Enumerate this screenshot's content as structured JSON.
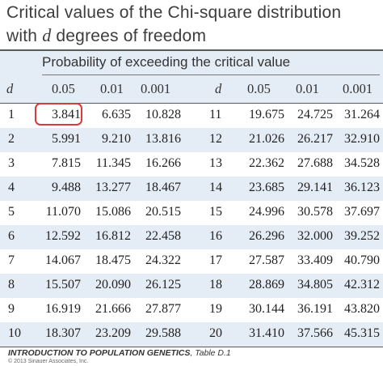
{
  "title": {
    "line1": "Critical values of the Chi-square distribution",
    "line2_prefix": "with ",
    "line2_var": "d",
    "line2_suffix": " degrees of freedom"
  },
  "header": {
    "probability_label": "Probability of exceeding the critical value",
    "columns_left": [
      "d",
      "0.05",
      "0.01",
      "0.001"
    ],
    "columns_right": [
      "d",
      "0.05",
      "0.01",
      "0.001"
    ]
  },
  "rows": [
    {
      "d1": "1",
      "a1": "3.841",
      "b1": "6.635",
      "c1": "10.828",
      "d2": "11",
      "a2": "19.675",
      "b2": "24.725",
      "c2": "31.264"
    },
    {
      "d1": "2",
      "a1": "5.991",
      "b1": "9.210",
      "c1": "13.816",
      "d2": "12",
      "a2": "21.026",
      "b2": "26.217",
      "c2": "32.910"
    },
    {
      "d1": "3",
      "a1": "7.815",
      "b1": "11.345",
      "c1": "16.266",
      "d2": "13",
      "a2": "22.362",
      "b2": "27.688",
      "c2": "34.528"
    },
    {
      "d1": "4",
      "a1": "9.488",
      "b1": "13.277",
      "c1": "18.467",
      "d2": "14",
      "a2": "23.685",
      "b2": "29.141",
      "c2": "36.123"
    },
    {
      "d1": "5",
      "a1": "11.070",
      "b1": "15.086",
      "c1": "20.515",
      "d2": "15",
      "a2": "24.996",
      "b2": "30.578",
      "c2": "37.697"
    },
    {
      "d1": "6",
      "a1": "12.592",
      "b1": "16.812",
      "c1": "22.458",
      "d2": "16",
      "a2": "26.296",
      "b2": "32.000",
      "c2": "39.252"
    },
    {
      "d1": "7",
      "a1": "14.067",
      "b1": "18.475",
      "c1": "24.322",
      "d2": "17",
      "a2": "27.587",
      "b2": "33.409",
      "c2": "40.790"
    },
    {
      "d1": "8",
      "a1": "15.507",
      "b1": "20.090",
      "c1": "26.125",
      "d2": "18",
      "a2": "28.869",
      "b2": "34.805",
      "c2": "42.312"
    },
    {
      "d1": "9",
      "a1": "16.919",
      "b1": "21.666",
      "c1": "27.877",
      "d2": "19",
      "a2": "30.144",
      "b2": "36.191",
      "c2": "43.820"
    },
    {
      "d1": "10",
      "a1": "18.307",
      "b1": "23.209",
      "c1": "29.588",
      "d2": "20",
      "a2": "31.410",
      "b2": "37.566",
      "c2": "45.315"
    }
  ],
  "highlighted_value": "3.841",
  "highlight_color": "#d93a3a",
  "band_color": "#e4ecf6",
  "footer": {
    "source_book": "INTRODUCTION TO POPULATION GENETICS",
    "source_table": ", Table D.1",
    "copyright": "© 2013 Sinauer Associates, Inc."
  }
}
